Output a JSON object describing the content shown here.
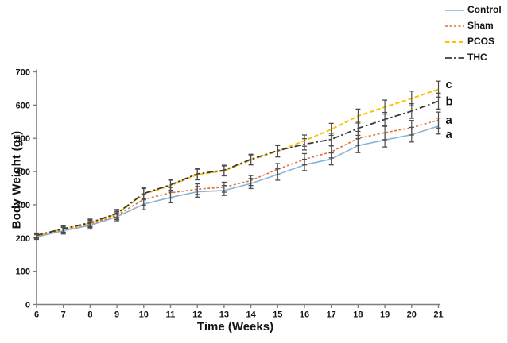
{
  "chart_data": {
    "type": "line",
    "title": "",
    "xlabel": "Time (Weeks)",
    "ylabel": "Body Weight (gr)",
    "x": [
      6,
      7,
      8,
      9,
      10,
      11,
      12,
      13,
      14,
      15,
      16,
      17,
      18,
      19,
      20,
      21
    ],
    "xlim": [
      6,
      21
    ],
    "ylim": [
      0,
      700
    ],
    "y_ticks": [
      0,
      100,
      200,
      300,
      400,
      500,
      600,
      700
    ],
    "grid": false,
    "legend_position": "top-right",
    "axis_color": "#7F7F7F",
    "tick_label_color": "#141414",
    "error_bar_color": "#4D4D4D",
    "error_bars_half": [
      7,
      10,
      11,
      12,
      17,
      16,
      16,
      15,
      15,
      17,
      17,
      18,
      21,
      21,
      22,
      24
    ],
    "series": [
      {
        "name": "Control",
        "color": "#89B4D6",
        "style": "solid",
        "sig_letter": "a",
        "values": [
          203,
          222,
          238,
          264,
          302,
          322,
          339,
          343,
          364,
          391,
          420,
          438,
          478,
          495,
          511,
          537
        ]
      },
      {
        "name": "Sham",
        "color": "#DB7134",
        "style": "dash-small",
        "sig_letter": "a",
        "values": [
          206,
          225,
          242,
          268,
          316,
          336,
          347,
          353,
          373,
          407,
          437,
          459,
          500,
          517,
          532,
          555
        ]
      },
      {
        "name": "PCOS",
        "color": "#FFC000",
        "style": "dash",
        "sig_letter": "c",
        "values": [
          207,
          227,
          244,
          272,
          332,
          358,
          391,
          402,
          435,
          461,
          493,
          527,
          567,
          594,
          620,
          648
        ]
      },
      {
        "name": "THC",
        "color": "#3B3B3B",
        "style": "dashdot",
        "sig_letter": "b",
        "values": [
          208,
          228,
          246,
          274,
          334,
          360,
          393,
          404,
          437,
          463,
          482,
          497,
          530,
          557,
          582,
          612
        ]
      }
    ],
    "annotations": [
      {
        "text": "c",
        "y": 663
      },
      {
        "text": "b",
        "y": 612
      },
      {
        "text": "a",
        "y": 556
      },
      {
        "text": "a",
        "y": 512
      }
    ]
  }
}
